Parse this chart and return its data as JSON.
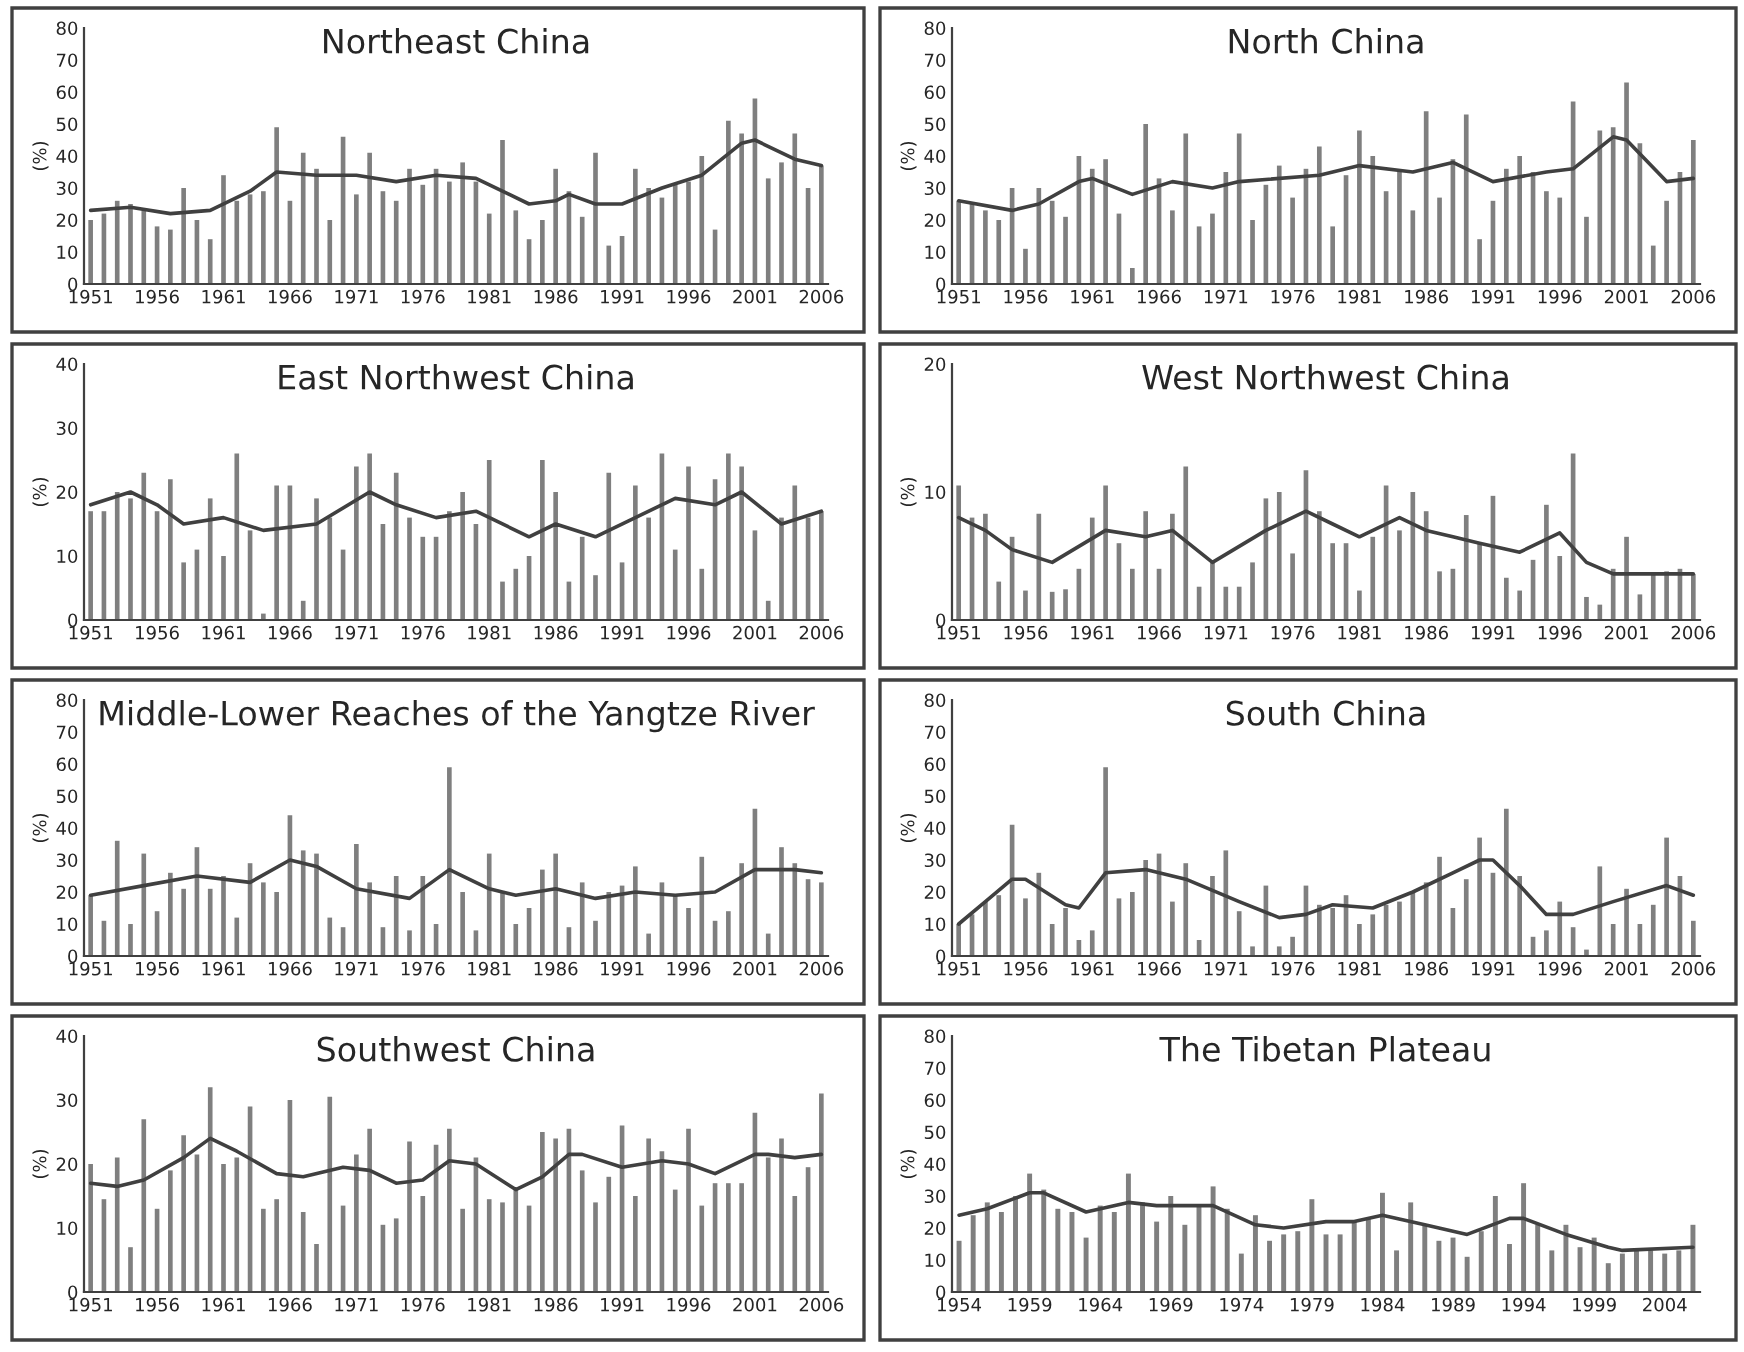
{
  "chart_data": [
    {
      "type": "bar",
      "title": "Northeast China",
      "ylabel": "(%)",
      "xlim": [
        1950.5,
        2006.5
      ],
      "xticks": [
        1951,
        1956,
        1961,
        1966,
        1971,
        1976,
        1981,
        1986,
        1991,
        1996,
        2001,
        2006
      ],
      "ylim": [
        0,
        80
      ],
      "yticks": [
        0,
        10,
        20,
        30,
        40,
        50,
        60,
        70,
        80
      ],
      "x": [
        1951,
        1952,
        1953,
        1954,
        1955,
        1956,
        1957,
        1958,
        1959,
        1960,
        1961,
        1962,
        1963,
        1964,
        1965,
        1966,
        1967,
        1968,
        1969,
        1970,
        1971,
        1972,
        1973,
        1974,
        1975,
        1976,
        1977,
        1978,
        1979,
        1980,
        1981,
        1982,
        1983,
        1984,
        1985,
        1986,
        1987,
        1988,
        1989,
        1990,
        1991,
        1992,
        1993,
        1994,
        1995,
        1996,
        1997,
        1998,
        1999,
        2000,
        2001,
        2002,
        2003,
        2004,
        2005,
        2006
      ],
      "series": [
        {
          "color": "#7f7f7f",
          "values": [
            20,
            22,
            26,
            25,
            23,
            18,
            17,
            30,
            20,
            14,
            34,
            26,
            28,
            29,
            49,
            26,
            41,
            36,
            20,
            46,
            28,
            41,
            29,
            26,
            36,
            31,
            36,
            32,
            38,
            32,
            22,
            45,
            23,
            14,
            20,
            36,
            29,
            21,
            41,
            12,
            15,
            36,
            30,
            27,
            31,
            32,
            40,
            17,
            51,
            47,
            58,
            33,
            38,
            47,
            30,
            37
          ]
        },
        {
          "type": "line",
          "color": "#404040",
          "x": [
            1951,
            1954,
            1957,
            1960,
            1963,
            1965,
            1968,
            1971,
            1974,
            1977,
            1980,
            1984,
            1986,
            1987,
            1989,
            1991,
            1994,
            1997,
            2000,
            2001,
            2004,
            2006
          ],
          "values": [
            23,
            24,
            22,
            23,
            29,
            35,
            34,
            34,
            32,
            34,
            33,
            25,
            26,
            28,
            25,
            25,
            30,
            34,
            44,
            45,
            39,
            37
          ]
        }
      ]
    },
    {
      "type": "bar",
      "title": "North China",
      "ylabel": "(%)",
      "xlim": [
        1950.5,
        2006.5
      ],
      "xticks": [
        1951,
        1956,
        1961,
        1966,
        1971,
        1976,
        1981,
        1986,
        1991,
        1996,
        2001,
        2006
      ],
      "ylim": [
        0,
        80
      ],
      "yticks": [
        0,
        10,
        20,
        30,
        40,
        50,
        60,
        70,
        80
      ],
      "x": [
        1951,
        1952,
        1953,
        1954,
        1955,
        1956,
        1957,
        1958,
        1959,
        1960,
        1961,
        1962,
        1963,
        1964,
        1965,
        1966,
        1967,
        1968,
        1969,
        1970,
        1971,
        1972,
        1973,
        1974,
        1975,
        1976,
        1977,
        1978,
        1979,
        1980,
        1981,
        1982,
        1983,
        1984,
        1985,
        1986,
        1987,
        1988,
        1989,
        1990,
        1991,
        1992,
        1993,
        1994,
        1995,
        1996,
        1997,
        1998,
        1999,
        2000,
        2001,
        2002,
        2003,
        2004,
        2005,
        2006
      ],
      "series": [
        {
          "color": "#7f7f7f",
          "values": [
            26,
            25,
            23,
            20,
            30,
            11,
            30,
            26,
            21,
            40,
            36,
            39,
            22,
            5,
            50,
            33,
            23,
            47,
            18,
            22,
            35,
            47,
            20,
            31,
            37,
            27,
            36,
            43,
            18,
            34,
            48,
            40,
            29,
            35,
            23,
            54,
            27,
            39,
            53,
            14,
            26,
            36,
            40,
            35,
            29,
            27,
            57,
            21,
            48,
            49,
            63,
            44,
            12,
            26,
            35,
            45
          ]
        },
        {
          "type": "line",
          "color": "#404040",
          "x": [
            1951,
            1955,
            1957,
            1960,
            1961,
            1964,
            1967,
            1970,
            1972,
            1978,
            1981,
            1985,
            1988,
            1991,
            1995,
            1997,
            2000,
            2001,
            2004,
            2006
          ],
          "values": [
            26,
            23,
            25,
            32,
            33,
            28,
            32,
            30,
            32,
            34,
            37,
            35,
            38,
            32,
            35,
            36,
            46,
            45,
            32,
            33
          ]
        }
      ]
    },
    {
      "type": "bar",
      "title": "East Northwest China",
      "ylabel": "(%)",
      "xlim": [
        1950.5,
        2006.5
      ],
      "xticks": [
        1951,
        1956,
        1961,
        1966,
        1971,
        1976,
        1981,
        1986,
        1991,
        1996,
        2001,
        2006
      ],
      "ylim": [
        0,
        40
      ],
      "yticks": [
        0,
        10,
        20,
        30,
        40
      ],
      "x": [
        1951,
        1952,
        1953,
        1954,
        1955,
        1956,
        1957,
        1958,
        1959,
        1960,
        1961,
        1962,
        1963,
        1964,
        1965,
        1966,
        1967,
        1968,
        1969,
        1970,
        1971,
        1972,
        1973,
        1974,
        1975,
        1976,
        1977,
        1978,
        1979,
        1980,
        1981,
        1982,
        1983,
        1984,
        1985,
        1986,
        1987,
        1988,
        1989,
        1990,
        1991,
        1992,
        1993,
        1994,
        1995,
        1996,
        1997,
        1998,
        1999,
        2000,
        2001,
        2002,
        2003,
        2004,
        2005,
        2006
      ],
      "series": [
        {
          "color": "#7f7f7f",
          "values": [
            17,
            17,
            20,
            19,
            23,
            17,
            22,
            9,
            11,
            19,
            10,
            26,
            14,
            1,
            21,
            21,
            3,
            19,
            16,
            11,
            24,
            26,
            15,
            23,
            16,
            13,
            13,
            17,
            20,
            15,
            25,
            6,
            8,
            10,
            25,
            20,
            6,
            13,
            7,
            23,
            9,
            21,
            16,
            26,
            11,
            24,
            8,
            22,
            26,
            24,
            14,
            3,
            16,
            21,
            16,
            17
          ]
        },
        {
          "type": "line",
          "color": "#404040",
          "x": [
            1951,
            1954,
            1956,
            1958,
            1961,
            1964,
            1968,
            1972,
            1974,
            1977,
            1980,
            1984,
            1986,
            1989,
            1992,
            1995,
            1998,
            2000,
            2003,
            2006
          ],
          "values": [
            18,
            20,
            18,
            15,
            16,
            14,
            15,
            20,
            18,
            16,
            17,
            13,
            15,
            13,
            16,
            19,
            18,
            20,
            15,
            17
          ]
        }
      ]
    },
    {
      "type": "bar",
      "title": "West Northwest China",
      "ylabel": "(%)",
      "xlim": [
        1950.5,
        2006.5
      ],
      "xticks": [
        1951,
        1956,
        1961,
        1966,
        1971,
        1976,
        1981,
        1986,
        1991,
        1996,
        2001,
        2006
      ],
      "ylim": [
        0,
        20
      ],
      "yticks": [
        0,
        10,
        20
      ],
      "x": [
        1951,
        1952,
        1953,
        1954,
        1955,
        1956,
        1957,
        1958,
        1959,
        1960,
        1961,
        1962,
        1963,
        1964,
        1965,
        1966,
        1967,
        1968,
        1969,
        1970,
        1971,
        1972,
        1973,
        1974,
        1975,
        1976,
        1977,
        1978,
        1979,
        1980,
        1981,
        1982,
        1983,
        1984,
        1985,
        1986,
        1987,
        1988,
        1989,
        1990,
        1991,
        1992,
        1993,
        1994,
        1995,
        1996,
        1997,
        1998,
        1999,
        2000,
        2001,
        2002,
        2003,
        2004,
        2005,
        2006
      ],
      "series": [
        {
          "color": "#7f7f7f",
          "values": [
            10.5,
            8,
            8.3,
            3,
            6.5,
            2.3,
            8.3,
            2.2,
            2.4,
            4,
            8,
            10.5,
            6,
            4,
            8.5,
            4,
            8.3,
            12,
            2.6,
            4.5,
            2.6,
            2.6,
            4.5,
            9.5,
            10,
            5.2,
            11.7,
            8.5,
            6,
            6,
            2.3,
            6.5,
            10.5,
            7,
            10,
            8.5,
            3.8,
            4,
            8.2,
            6,
            9.7,
            3.3,
            2.3,
            4.7,
            9,
            5,
            13,
            1.8,
            1.2,
            4,
            6.5,
            2,
            3.6,
            3.8,
            4,
            3.6
          ]
        },
        {
          "type": "line",
          "color": "#404040",
          "x": [
            1951,
            1953,
            1955,
            1958,
            1962,
            1965,
            1967,
            1970,
            1974,
            1977,
            1979,
            1981,
            1984,
            1986,
            1988,
            1990,
            1993,
            1996,
            1998,
            2000,
            2006
          ],
          "values": [
            8,
            7,
            5.5,
            4.5,
            7,
            6.5,
            7,
            4.5,
            7,
            8.5,
            7.5,
            6.5,
            8,
            7,
            6.5,
            6,
            5.3,
            6.8,
            4.5,
            3.6,
            3.6
          ]
        }
      ]
    },
    {
      "type": "bar",
      "title": "Middle-Lower Reaches of the Yangtze River",
      "ylabel": "(%)",
      "xlim": [
        1950.5,
        2006.5
      ],
      "xticks": [
        1951,
        1956,
        1961,
        1966,
        1971,
        1976,
        1981,
        1986,
        1991,
        1996,
        2001,
        2006
      ],
      "ylim": [
        0,
        80
      ],
      "yticks": [
        0,
        10,
        20,
        30,
        40,
        50,
        60,
        70,
        80
      ],
      "x": [
        1951,
        1952,
        1953,
        1954,
        1955,
        1956,
        1957,
        1958,
        1959,
        1960,
        1961,
        1962,
        1963,
        1964,
        1965,
        1966,
        1967,
        1968,
        1969,
        1970,
        1971,
        1972,
        1973,
        1974,
        1975,
        1976,
        1977,
        1978,
        1979,
        1980,
        1981,
        1982,
        1983,
        1984,
        1985,
        1986,
        1987,
        1988,
        1989,
        1990,
        1991,
        1992,
        1993,
        1994,
        1995,
        1996,
        1997,
        1998,
        1999,
        2000,
        2001,
        2002,
        2003,
        2004,
        2005,
        2006
      ],
      "series": [
        {
          "color": "#7f7f7f",
          "values": [
            19,
            11,
            36,
            10,
            32,
            14,
            26,
            21,
            34,
            21,
            25,
            12,
            29,
            23,
            20,
            44,
            33,
            32,
            12,
            9,
            35,
            23,
            9,
            25,
            8,
            25,
            10,
            59,
            20,
            8,
            32,
            20,
            10,
            15,
            27,
            32,
            9,
            23,
            11,
            20,
            22,
            28,
            7,
            23,
            19,
            15,
            31,
            11,
            14,
            29,
            46,
            7,
            34,
            29,
            24,
            23
          ]
        },
        {
          "type": "line",
          "color": "#404040",
          "x": [
            1951,
            1955,
            1959,
            1963,
            1966,
            1968,
            1971,
            1975,
            1978,
            1981,
            1983,
            1986,
            1989,
            1992,
            1995,
            1998,
            2001,
            2004,
            2006
          ],
          "values": [
            19,
            22,
            25,
            23,
            30,
            28,
            21,
            18,
            27,
            21,
            19,
            21,
            18,
            20,
            19,
            20,
            27,
            27,
            26
          ]
        }
      ]
    },
    {
      "type": "bar",
      "title": "South China",
      "ylabel": "(%)",
      "xlim": [
        1950.5,
        2006.5
      ],
      "xticks": [
        1951,
        1956,
        1961,
        1966,
        1971,
        1976,
        1981,
        1986,
        1991,
        1996,
        2001,
        2006
      ],
      "ylim": [
        0,
        80
      ],
      "yticks": [
        0,
        10,
        20,
        30,
        40,
        50,
        60,
        70,
        80
      ],
      "x": [
        1951,
        1952,
        1953,
        1954,
        1955,
        1956,
        1957,
        1958,
        1959,
        1960,
        1961,
        1962,
        1963,
        1964,
        1965,
        1966,
        1967,
        1968,
        1969,
        1970,
        1971,
        1972,
        1973,
        1974,
        1975,
        1976,
        1977,
        1978,
        1979,
        1980,
        1981,
        1982,
        1983,
        1984,
        1985,
        1986,
        1987,
        1988,
        1989,
        1990,
        1991,
        1992,
        1993,
        1994,
        1995,
        1996,
        1997,
        1998,
        1999,
        2000,
        2001,
        2002,
        2003,
        2004,
        2005,
        2006
      ],
      "series": [
        {
          "color": "#7f7f7f",
          "values": [
            10,
            13,
            17,
            19,
            41,
            18,
            26,
            10,
            15,
            5,
            8,
            59,
            18,
            20,
            30,
            32,
            17,
            29,
            5,
            25,
            33,
            14,
            3,
            22,
            3,
            6,
            22,
            16,
            15,
            19,
            10,
            13,
            16,
            17,
            20,
            23,
            31,
            15,
            24,
            37,
            26,
            46,
            25,
            6,
            8,
            17,
            9,
            2,
            28,
            10,
            21,
            10,
            16,
            37,
            25,
            11
          ]
        },
        {
          "type": "line",
          "color": "#404040",
          "x": [
            1951,
            1953,
            1955,
            1956,
            1959,
            1960,
            1962,
            1965,
            1968,
            1972,
            1975,
            1977,
            1979,
            1982,
            1985,
            1988,
            1990,
            1991,
            1993,
            1995,
            1997,
            2000,
            2004,
            2006
          ],
          "values": [
            10,
            17,
            24,
            24,
            16,
            15,
            26,
            27,
            24,
            17,
            12,
            13,
            16,
            15,
            20,
            26,
            30,
            30,
            22,
            13,
            13,
            17,
            22,
            19
          ]
        }
      ]
    },
    {
      "type": "bar",
      "title": "Southwest China",
      "ylabel": "(%)",
      "xlim": [
        1950.5,
        2006.5
      ],
      "xticks": [
        1951,
        1956,
        1961,
        1966,
        1971,
        1976,
        1981,
        1986,
        1991,
        1996,
        2001,
        2006
      ],
      "ylim": [
        0,
        40
      ],
      "yticks": [
        0,
        10,
        20,
        30,
        40
      ],
      "x": [
        1951,
        1952,
        1953,
        1954,
        1955,
        1956,
        1957,
        1958,
        1959,
        1960,
        1961,
        1962,
        1963,
        1964,
        1965,
        1966,
        1967,
        1968,
        1969,
        1970,
        1971,
        1972,
        1973,
        1974,
        1975,
        1976,
        1977,
        1978,
        1979,
        1980,
        1981,
        1982,
        1983,
        1984,
        1985,
        1986,
        1987,
        1988,
        1989,
        1990,
        1991,
        1992,
        1993,
        1994,
        1995,
        1996,
        1997,
        1998,
        1999,
        2000,
        2001,
        2002,
        2003,
        2004,
        2005,
        2006
      ],
      "series": [
        {
          "color": "#7f7f7f",
          "values": [
            20,
            14.5,
            21,
            7,
            27,
            13,
            19,
            24.5,
            21.5,
            32,
            20,
            21,
            29,
            13,
            14.5,
            30,
            12.5,
            7.5,
            30.5,
            13.5,
            21.5,
            25.5,
            10.5,
            11.5,
            23.5,
            15,
            23,
            25.5,
            13,
            21,
            14.5,
            14,
            16,
            13.5,
            25,
            24,
            25.5,
            19,
            14,
            18,
            26,
            15,
            24,
            22,
            16,
            25.5,
            13.5,
            17,
            17,
            17,
            28,
            21,
            24,
            15,
            19.5,
            31
          ]
        },
        {
          "type": "line",
          "color": "#404040",
          "x": [
            1951,
            1953,
            1955,
            1958,
            1960,
            1962,
            1965,
            1967,
            1970,
            1972,
            1974,
            1976,
            1978,
            1980,
            1983,
            1985,
            1987,
            1988,
            1991,
            1994,
            1996,
            1998,
            2001,
            2002,
            2004,
            2006
          ],
          "values": [
            17,
            16.5,
            17.5,
            21,
            24,
            22,
            18.5,
            18,
            19.5,
            19,
            17,
            17.5,
            20.5,
            20,
            16,
            18,
            21.5,
            21.5,
            19.5,
            20.5,
            20,
            18.5,
            21.5,
            21.5,
            21,
            21.5
          ]
        }
      ]
    },
    {
      "type": "bar",
      "title": "The Tibetan Plateau",
      "ylabel": "(%)",
      "xlim": [
        1953.5,
        2006.5
      ],
      "xticks": [
        1954,
        1959,
        1964,
        1969,
        1974,
        1979,
        1984,
        1989,
        1994,
        1999,
        2004
      ],
      "ylim": [
        0,
        80
      ],
      "yticks": [
        0,
        10,
        20,
        30,
        40,
        50,
        60,
        70,
        80
      ],
      "x": [
        1954,
        1955,
        1956,
        1957,
        1958,
        1959,
        1960,
        1961,
        1962,
        1963,
        1964,
        1965,
        1966,
        1967,
        1968,
        1969,
        1970,
        1971,
        1972,
        1973,
        1974,
        1975,
        1976,
        1977,
        1978,
        1979,
        1980,
        1981,
        1982,
        1983,
        1984,
        1985,
        1986,
        1987,
        1988,
        1989,
        1990,
        1991,
        1992,
        1993,
        1994,
        1995,
        1996,
        1997,
        1998,
        1999,
        2000,
        2001,
        2002,
        2003,
        2004,
        2005,
        2006
      ],
      "series": [
        {
          "color": "#7f7f7f",
          "values": [
            16,
            24,
            28,
            25,
            30,
            37,
            32,
            26,
            25,
            17,
            27,
            25,
            37,
            28,
            22,
            30,
            21,
            27,
            33,
            26,
            12,
            24,
            16,
            18,
            19,
            29,
            18,
            18,
            22,
            23,
            31,
            13,
            28,
            21,
            16,
            17,
            11,
            19,
            30,
            15,
            34,
            21,
            13,
            21,
            14,
            17,
            9,
            12,
            13,
            13,
            12,
            13,
            21
          ]
        },
        {
          "type": "line",
          "color": "#404040",
          "x": [
            1954,
            1956,
            1959,
            1960,
            1963,
            1966,
            1968,
            1972,
            1975,
            1977,
            1980,
            1982,
            1984,
            1987,
            1990,
            1993,
            1994,
            1997,
            2000,
            2001,
            2006
          ],
          "values": [
            24,
            26,
            31,
            31,
            25,
            28,
            27,
            27,
            21,
            20,
            22,
            22,
            24,
            21,
            18,
            23,
            23,
            18,
            14,
            13,
            14
          ]
        }
      ]
    }
  ]
}
